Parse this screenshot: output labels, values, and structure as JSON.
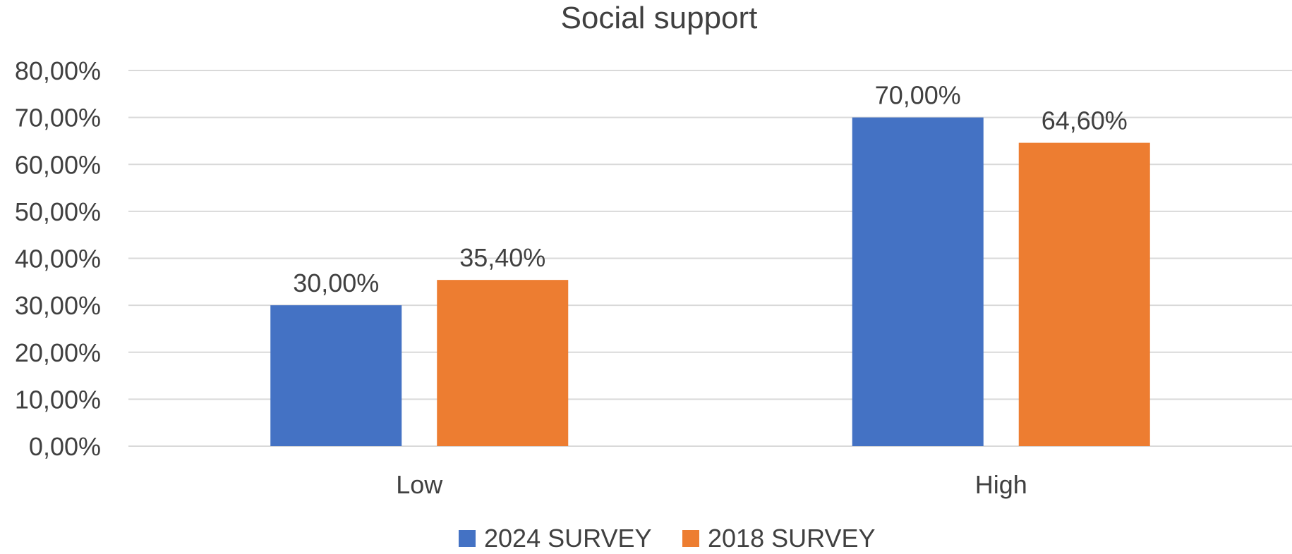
{
  "chart_data": {
    "type": "bar",
    "title": "Social support",
    "xlabel": "",
    "ylabel": "",
    "categories": [
      "Low",
      "High"
    ],
    "series": [
      {
        "name": "2024 SURVEY",
        "color": "#4472C4",
        "values": [
          30.0,
          70.0
        ],
        "labels": [
          "30,00%",
          "70,00%"
        ]
      },
      {
        "name": "2018 SURVEY",
        "color": "#ED7D31",
        "values": [
          35.4,
          64.6
        ],
        "labels": [
          "35,40%",
          "64,60%"
        ]
      }
    ],
    "ylim": [
      0,
      80
    ],
    "yticks": [
      0,
      10,
      20,
      30,
      40,
      50,
      60,
      70,
      80
    ],
    "ytick_labels": [
      "0,00%",
      "10,00%",
      "20,00%",
      "30,00%",
      "40,00%",
      "50,00%",
      "60,00%",
      "70,00%",
      "80,00%"
    ],
    "grid": true,
    "gridline_color": "#D9D9D9",
    "legend_position": "bottom"
  }
}
